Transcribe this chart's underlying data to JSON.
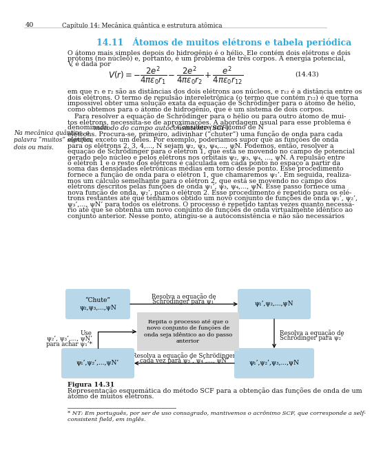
{
  "page_number": "40",
  "header": "Capítulo 14: Mecânica quântica e estrutura atômica",
  "section_title": "14.11   Átomos de muitos elétrons e tabela periódica",
  "para1": [
    "O átomo mais simples depois do hidrogênio é o hélio. Ele contém dois elétrons e dois",
    "prótons (no núcleo) e, portanto, é um problema de três corpos. A energia potencial,",
    "V, é dada por"
  ],
  "equation_label": "(14.43)",
  "para2": [
    "em que r₁ e r₂ são as distâncias dos dois elétrons aos núcleos, e r₁₂ é a distância entre os",
    "dois elétrons. O termo de repulsão intereletrônica (o termo que contém r₁₂) é que torna",
    "impossível obter uma solução exata da equação de Schrödinger para o átomo de hélio,",
    "como obtemos para o átomo de hidrogênio, que é um sistema de dois corpos."
  ],
  "para3": [
    "Para resolver a equação de Schrödinger para o hélio ou para outro átomo de mui-",
    "tos elétrons, necessita-se de aproximações. A abordagem usual para esse problema é",
    "denominada ",
    "método do campo autoconsistente (SCF).",
    "* Considere um átomo de N",
    "elétrons. Procura-se, primeiro, adivinhar (“chuter”) uma função de onda para cada",
    "elétron, exceto um deles. Por exemplo, poderíamos supor que as funções de onda",
    "para os elétrons 2, 3, 4,..., N sejam ψ₂, ψ₃, ψ₄,..., ψN. Podemos, então, resolver a",
    "equação de Schrödinger para o elétron 1, que está se movendo no campo de potencial",
    "gerado pelo núcleo e pelos elétrons nos orbitais ψ₂, ψ₃, ψ₄, ..., ψN. A repulsão entre",
    "o elétron 1 e o resto dos elétrons é calculada em cada ponto no espaço a partir da",
    "soma das densidades eletrônicas médias em torno desse ponto. Esse procedimento",
    "fornece a função de onda para o elétron 1, que chamaremos ψ₁’. Em seguida, realiza-",
    "mos um cálculo semelhante para o elétron 2, que está se movendo no campo dos",
    "elétrons descritos pelas funções de onda ψ₁’, ψ₃, ψ₄,..., ψN. Esse passo fornece uma",
    "nova função de onda, ψ₂’, para o elétron 2. Esse procedimento é repetido para os elé-",
    "trons restantes até que tenhamos obtido um novo conjunto de funções de onda ψ₁’, ψ₂’,",
    "ψ₃’,..., ψN’ para todos os elétrons. O processo é repetido tantas vezes quanto necessá-",
    "rio até que se obtenha um novo conjunto de funções de onda virtualmente idêntico ao",
    "conjunto anterior. Nesse ponto, atingiu-se a autoconsistência e não são necessários"
  ],
  "sidebar_text": "Na mecânica quântica, a\npalavra “muitos” significa\ndois ou mais.",
  "fig_caption_bold": "Figura 14.31",
  "fig_caption_line1": "Representação esquemática do método SCF para a obtenção das funções de onda de um",
  "fig_caption_line2": "átomo de muitos elétrons.",
  "footnote_line1": "* NT: Em português, por ser de uso consagrado, mantivemos o acrônimo SCF, que corresponde a self-",
  "footnote_line2": "consistent field, em inglês.",
  "box_color": "#b8d8ea",
  "box_color_gray": "#d8d8d8",
  "title_color": "#29abe2",
  "text_color": "#1a1a1a",
  "bg_color": "#ffffff",
  "diag_tl_line1": "“Chute”",
  "diag_tl_line2": "ψ₂,ψ₃,...,ψN",
  "diag_tr_text": "ψ₁’,ψ₂,...,ψN",
  "diag_bl_text": "ψ₁’,ψ₂’,...,ψN’",
  "diag_br_text": "ψ₁’,ψ₂’,ψ₃,...,ψN",
  "diag_center_text": "Repita o processo até que o\nnovo conjunto de funções de\nonda seja idêntico ao do passo\nanterior",
  "diag_top_label_line1": "Resolva a equação de",
  "diag_top_label_line2": "Schrödinger para ψ₁’",
  "diag_right_label_line1": "Resolva a equação de",
  "diag_right_label_line2": "Schrödinger para ψ₂’",
  "diag_bottom_label_line1": "Resolva a equação de Schrödinger",
  "diag_bottom_label_line2": "cada vez para ψ₃’, ψ₄’,..., ψN’",
  "diag_left_label_line1": "Use",
  "diag_left_label_line2": "ψ₂’, ψ₃’,..., ψN’",
  "diag_left_label_line3": "para achar ψ₁’*"
}
